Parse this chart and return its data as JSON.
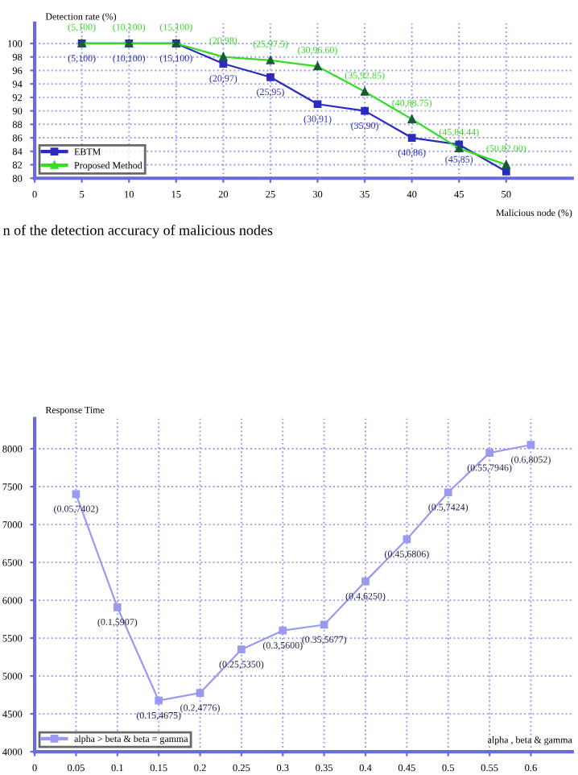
{
  "chart_data": [
    {
      "type": "line",
      "xlabel": "Malicious node (%)",
      "ylabel": "Detection rate (%)",
      "x": [
        5,
        10,
        15,
        20,
        25,
        30,
        35,
        40,
        45,
        50
      ],
      "xlim": [
        0,
        57
      ],
      "xticks": [
        0,
        5,
        10,
        15,
        20,
        25,
        30,
        35,
        40,
        45,
        50
      ],
      "ylim": [
        80,
        103
      ],
      "yticks": [
        80,
        82,
        84,
        86,
        88,
        90,
        92,
        94,
        96,
        98,
        100
      ],
      "grid": true,
      "legend": "bottom left",
      "series": [
        {
          "name": "EBTM",
          "color": "#2b2bc0",
          "marker": "square",
          "values": [
            100,
            100,
            100,
            97,
            95,
            91,
            90,
            86,
            85,
            81
          ]
        },
        {
          "name": "Proposed Method",
          "color": "#33dd22",
          "marker": "triangle",
          "values": [
            100,
            100,
            100,
            98,
            97.5,
            96.6,
            92.85,
            88.75,
            84.44,
            82.0
          ]
        }
      ],
      "annotations": [
        {
          "text": "(5,100)",
          "x": 5,
          "y": 100
        },
        {
          "text": "(10,100)",
          "x": 10,
          "y": 100
        },
        {
          "text": "(15,100)",
          "x": 15,
          "y": 100
        },
        {
          "text": "(20,97)",
          "x": 20,
          "y": 97
        },
        {
          "text": "(25,95)",
          "x": 25,
          "y": 95
        },
        {
          "text": "(30,91)",
          "x": 30,
          "y": 91
        },
        {
          "text": "(35,90)",
          "x": 35,
          "y": 90
        },
        {
          "text": "(40,86)",
          "x": 40,
          "y": 86
        },
        {
          "text": "(45,85)",
          "x": 45,
          "y": 85
        },
        {
          "text": "(5,100)",
          "x": 5,
          "y": 100
        },
        {
          "text": "(10,100)",
          "x": 10,
          "y": 100
        },
        {
          "text": "(15,100)",
          "x": 15,
          "y": 100
        },
        {
          "text": "(20,98)",
          "x": 20,
          "y": 98
        },
        {
          "text": "(25,97.5)",
          "x": 25,
          "y": 97.5
        },
        {
          "text": "(30,96.60)",
          "x": 30,
          "y": 96.6
        },
        {
          "text": "(35,92.85)",
          "x": 35,
          "y": 92.85
        },
        {
          "text": "(40,88.75)",
          "x": 40,
          "y": 88.75
        },
        {
          "text": "(45,84.44)",
          "x": 45,
          "y": 84.44
        },
        {
          "text": "(50,82.00)",
          "x": 50,
          "y": 82.0
        },
        "n of the detection accuracy of malicious nodes"
      ]
    },
    {
      "type": "line",
      "xlabel": "alpha , beta & gamma",
      "ylabel": "Response Time",
      "x": [
        0.05,
        0.1,
        0.15,
        0.2,
        0.25,
        0.3,
        0.35,
        0.4,
        0.45,
        0.5,
        0.55,
        0.6
      ],
      "xlim": [
        0,
        0.65
      ],
      "xticks": [
        0,
        0.05,
        0.1,
        0.15,
        0.2,
        0.25,
        0.3,
        0.35,
        0.4,
        0.45,
        0.5,
        0.55,
        0.6
      ],
      "ylim": [
        4000,
        8400
      ],
      "yticks": [
        4000,
        4500,
        5000,
        5500,
        6000,
        6500,
        7000,
        7500,
        8000
      ],
      "grid": true,
      "legend": "bottom left",
      "series": [
        {
          "name": "alpha > beta & beta = gamma",
          "color": "#9a9af0",
          "marker": "square",
          "values": [
            7402,
            5907,
            4675,
            4776,
            5350,
            5600,
            5677,
            6250,
            6806,
            7424,
            7946,
            8052
          ]
        }
      ],
      "annotations": [
        {
          "text": "(0.05,7402)",
          "x": 0.05,
          "y": 7402
        },
        {
          "text": "(0.1,5907)",
          "x": 0.1,
          "y": 5907
        },
        {
          "text": "(0.15,4675)",
          "x": 0.15,
          "y": 4675
        },
        {
          "text": "(0.2,4776)",
          "x": 0.2,
          "y": 4776
        },
        {
          "text": "(0.25,5350)",
          "x": 0.25,
          "y": 5350
        },
        {
          "text": "(0.3,5600)",
          "x": 0.3,
          "y": 5600
        },
        {
          "text": "(0.35,5677)",
          "x": 0.35,
          "y": 5677
        },
        {
          "text": "(0.4,6250)",
          "x": 0.4,
          "y": 6250
        },
        {
          "text": "(0.45,6806)",
          "x": 0.45,
          "y": 6806
        },
        {
          "text": "(0.5,7424)",
          "x": 0.5,
          "y": 7424
        },
        {
          "text": "(0.55,7946)",
          "x": 0.55,
          "y": 7946
        },
        {
          "text": "(0.6,8052)",
          "x": 0.6,
          "y": 8052
        }
      ]
    }
  ]
}
